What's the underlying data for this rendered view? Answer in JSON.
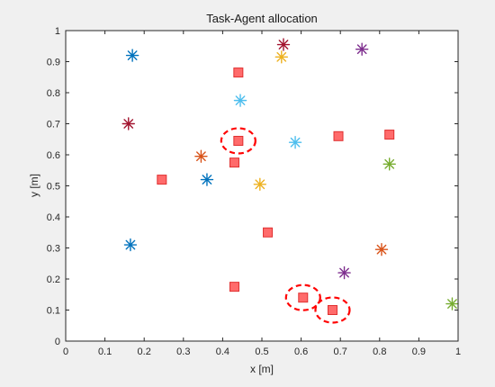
{
  "chart_data": {
    "type": "scatter",
    "title": "Task-Agent allocation",
    "xlabel": "x [m]",
    "ylabel": "y [m]",
    "xlim": [
      0,
      1
    ],
    "ylim": [
      0,
      1
    ],
    "xticks": [
      "0",
      "0.1",
      "0.2",
      "0.3",
      "0.4",
      "0.5",
      "0.6",
      "0.7",
      "0.8",
      "0.9",
      "1"
    ],
    "yticks": [
      "0",
      "0.1",
      "0.2",
      "0.3",
      "0.4",
      "0.5",
      "0.6",
      "0.7",
      "0.8",
      "0.9",
      "1"
    ],
    "grid": false,
    "legend": false,
    "series": [
      {
        "marker": "square",
        "color": "#ff6b6b",
        "stroke": "#e03030",
        "points": [
          [
            0.44,
            0.865
          ],
          [
            0.44,
            0.645
          ],
          [
            0.43,
            0.575
          ],
          [
            0.245,
            0.52
          ],
          [
            0.695,
            0.66
          ],
          [
            0.825,
            0.665
          ],
          [
            0.515,
            0.35
          ],
          [
            0.43,
            0.175
          ],
          [
            0.605,
            0.14
          ],
          [
            0.68,
            0.1
          ]
        ]
      },
      {
        "marker": "asterisk",
        "points": [
          {
            "x": 0.17,
            "y": 0.92,
            "color": "#0072bd"
          },
          {
            "x": 0.36,
            "y": 0.52,
            "color": "#0072bd"
          },
          {
            "x": 0.165,
            "y": 0.31,
            "color": "#0072bd"
          },
          {
            "x": 0.555,
            "y": 0.955,
            "color": "#a2142f"
          },
          {
            "x": 0.16,
            "y": 0.7,
            "color": "#a2142f"
          },
          {
            "x": 0.55,
            "y": 0.915,
            "color": "#edb120"
          },
          {
            "x": 0.495,
            "y": 0.505,
            "color": "#edb120"
          },
          {
            "x": 0.755,
            "y": 0.94,
            "color": "#7e2f8e"
          },
          {
            "x": 0.71,
            "y": 0.22,
            "color": "#7e2f8e"
          },
          {
            "x": 0.445,
            "y": 0.775,
            "color": "#4dbeee"
          },
          {
            "x": 0.585,
            "y": 0.64,
            "color": "#4dbeee"
          },
          {
            "x": 0.345,
            "y": 0.595,
            "color": "#d95319"
          },
          {
            "x": 0.805,
            "y": 0.295,
            "color": "#d95319"
          },
          {
            "x": 0.825,
            "y": 0.57,
            "color": "#77ac30"
          },
          {
            "x": 0.985,
            "y": 0.12,
            "color": "#77ac30"
          }
        ]
      }
    ],
    "highlights": [
      {
        "x": 0.44,
        "y": 0.645,
        "color": "#ff0000",
        "style": "dashed-ellipse"
      },
      {
        "x": 0.605,
        "y": 0.14,
        "color": "#ff0000",
        "style": "dashed-ellipse"
      },
      {
        "x": 0.68,
        "y": 0.1,
        "color": "#ff0000",
        "style": "dashed-ellipse"
      }
    ]
  }
}
